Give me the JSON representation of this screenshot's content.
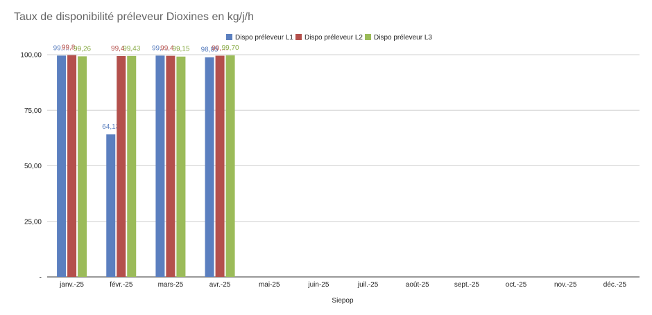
{
  "chart_data": {
    "type": "bar",
    "title": "Taux de disponibilité préleveur Dioxines en kg/j/h",
    "xlabel": "Siepop",
    "ylabel": "",
    "ylim": [
      0,
      100
    ],
    "yticks": [
      "-",
      "25,00",
      "50,00",
      "75,00",
      "100,00"
    ],
    "ytick_values": [
      0,
      25,
      50,
      75,
      100
    ],
    "grid": true,
    "legend_position": "top",
    "categories": [
      "janv.-25",
      "févr.-25",
      "mars-25",
      "avr.-25",
      "mai-25",
      "juin-25",
      "juil.-25",
      "août-25",
      "sept.-25",
      "oct.-25",
      "nov.-25",
      "déc.-25"
    ],
    "series": [
      {
        "name": "Dispo préleveur L1",
        "color": "#5b7fbf",
        "label_color": "#5b7fbf",
        "values": [
          99.6,
          64.13,
          99.6,
          98.85,
          null,
          null,
          null,
          null,
          null,
          null,
          null,
          null
        ],
        "labels": [
          "99,…",
          "64,13",
          "99,…",
          "98,85",
          "",
          "",
          "",
          "",
          "",
          "",
          "",
          ""
        ]
      },
      {
        "name": "Dispo préleveur L2",
        "color": "#b4504c",
        "label_color": "#b4504c",
        "values": [
          99.8,
          99.4,
          99.5,
          99.55,
          null,
          null,
          null,
          null,
          null,
          null,
          null,
          null
        ],
        "labels": [
          "99,8…",
          "99,4…",
          "99,4…",
          "99,…",
          "",
          "",
          "",
          "",
          "",
          "",
          "",
          ""
        ]
      },
      {
        "name": "Dispo préleveur L3",
        "color": "#9bbb59",
        "label_color": "#8aac48",
        "values": [
          99.26,
          99.43,
          99.15,
          99.7,
          null,
          null,
          null,
          null,
          null,
          null,
          null,
          null
        ],
        "labels": [
          "99,26",
          "99,43",
          "99,15",
          "99,70",
          "",
          "",
          "",
          "",
          "",
          "",
          "",
          ""
        ]
      }
    ]
  }
}
